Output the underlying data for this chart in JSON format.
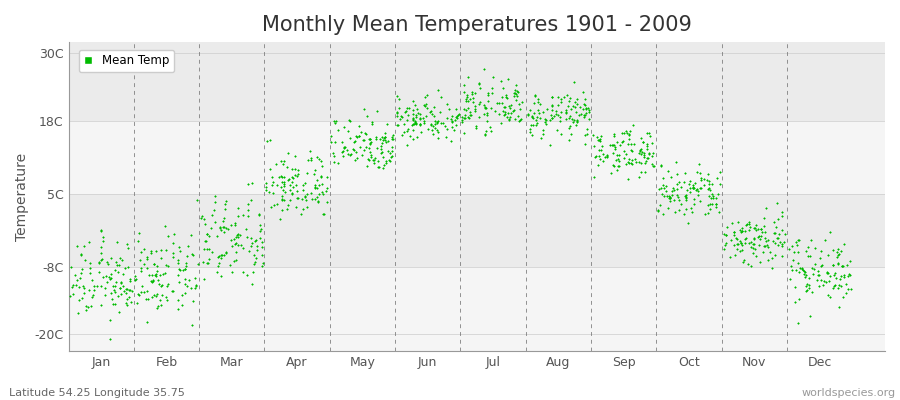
{
  "title": "Monthly Mean Temperatures 1901 - 2009",
  "ylabel": "Temperature",
  "subtitle": "Latitude 54.25 Longitude 35.75",
  "watermark": "worldspecies.org",
  "ytick_labels": [
    "30C",
    "18C",
    "5C",
    "-8C",
    "-20C"
  ],
  "ytick_values": [
    30,
    18,
    5,
    -8,
    -20
  ],
  "ylim": [
    -23,
    32
  ],
  "months": [
    "Jan",
    "Feb",
    "Mar",
    "Apr",
    "May",
    "Jun",
    "Jul",
    "Aug",
    "Sep",
    "Oct",
    "Nov",
    "Dec"
  ],
  "mean_temps": [
    -10.5,
    -9.8,
    -3.5,
    6.5,
    14.0,
    18.5,
    20.5,
    19.0,
    12.5,
    5.0,
    -3.0,
    -8.5
  ],
  "std_temps": [
    3.5,
    3.5,
    4.0,
    3.0,
    2.5,
    2.0,
    2.0,
    2.0,
    2.0,
    2.5,
    2.5,
    3.0
  ],
  "n_years": 109,
  "dot_color": "#00bb00",
  "dot_size": 3,
  "bg_bands": [
    {
      "ymin": 18,
      "ymax": 32,
      "color": "#ebebeb"
    },
    {
      "ymin": 5,
      "ymax": 18,
      "color": "#f5f5f5"
    },
    {
      "ymin": -8,
      "ymax": 5,
      "color": "#ebebeb"
    },
    {
      "ymin": -23,
      "ymax": -8,
      "color": "#f5f5f5"
    }
  ],
  "legend_label": "Mean Temp",
  "dashed_line_color": "#777777",
  "title_fontsize": 15,
  "axis_label_fontsize": 10,
  "tick_fontsize": 9,
  "subtitle_fontsize": 8,
  "watermark_fontsize": 8
}
